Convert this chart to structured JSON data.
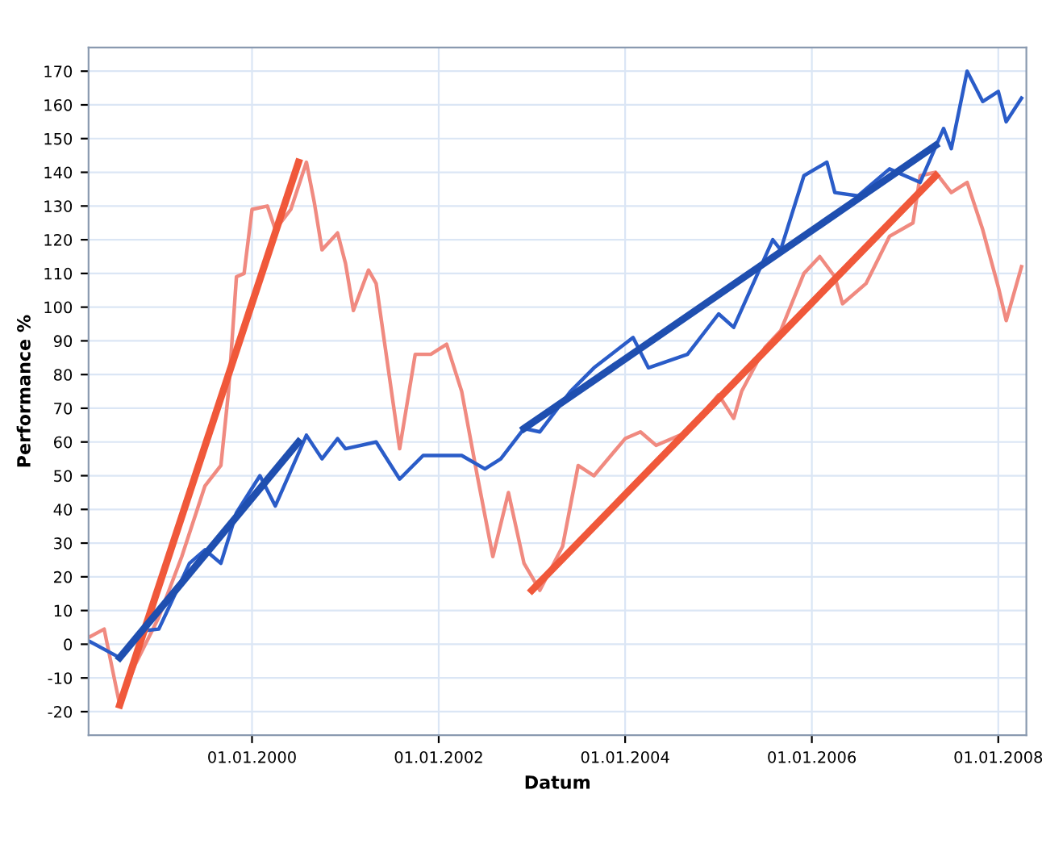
{
  "chart_data": {
    "type": "line",
    "xlabel": "Datum",
    "ylabel": "Performance %",
    "xlim": [
      "1998-04-01",
      "2008-04-20"
    ],
    "ylim": [
      -27,
      177
    ],
    "xticks": [
      {
        "value": "2000-01-01",
        "label": "01.01.2000"
      },
      {
        "value": "2002-01-01",
        "label": "01.01.2002"
      },
      {
        "value": "2004-01-01",
        "label": "01.01.2004"
      },
      {
        "value": "2006-01-01",
        "label": "01.01.2006"
      },
      {
        "value": "2008-01-01",
        "label": "01.01.2008"
      }
    ],
    "yticks": [
      -20,
      -10,
      0,
      10,
      20,
      30,
      40,
      50,
      60,
      70,
      80,
      90,
      100,
      110,
      120,
      130,
      140,
      150,
      160,
      170
    ],
    "grid": true,
    "marker": "none",
    "line_style": "solid",
    "series": [
      {
        "color": "#f08a80",
        "x": [
          "1998-04",
          "1998-06",
          "1998-08",
          "1998-10",
          "1999-01",
          "1999-04",
          "1999-07",
          "1999-09",
          "1999-10",
          "1999-11",
          "1999-12",
          "2000-01",
          "2000-03",
          "2000-04",
          "2000-06",
          "2000-08",
          "2000-09",
          "2000-10",
          "2000-12",
          "2001-01",
          "2001-02",
          "2001-04",
          "2001-05",
          "2001-08",
          "2001-10",
          "2001-12",
          "2002-02",
          "2002-04",
          "2002-06",
          "2002-08",
          "2002-10",
          "2002-12",
          "2003-02",
          "2003-05",
          "2003-07",
          "2003-09",
          "2004-01",
          "2004-03",
          "2004-05",
          "2004-09",
          "2005-01",
          "2005-03",
          "2005-04",
          "2005-07",
          "2005-09",
          "2005-12",
          "2006-02",
          "2006-04",
          "2006-05",
          "2006-08",
          "2006-11",
          "2007-02",
          "2007-03",
          "2007-05",
          "2007-07",
          "2007-09",
          "2007-11",
          "2008-01",
          "2008-02",
          "2008-04"
        ],
        "values": [
          2,
          4.5,
          -18,
          -6,
          8,
          26,
          47,
          53,
          75,
          109,
          110,
          129,
          130,
          123,
          129,
          143,
          131,
          117,
          122,
          113,
          99,
          111,
          107,
          58,
          86,
          86,
          89,
          75,
          50,
          26,
          45,
          24,
          16,
          29,
          53,
          50,
          61,
          63,
          59,
          63,
          74,
          67,
          75,
          88,
          93,
          110,
          115,
          109,
          101,
          107,
          121,
          125,
          139,
          140,
          134,
          137,
          123,
          106,
          96,
          112
        ]
      },
      {
        "color": "#2a5cc8",
        "x": [
          "1998-04",
          "1998-08",
          "1998-11",
          "1999-01",
          "1999-05",
          "1999-07",
          "1999-09",
          "1999-11",
          "2000-02",
          "2000-04",
          "2000-08",
          "2000-10",
          "2000-12",
          "2001-01",
          "2001-05",
          "2001-08",
          "2001-11",
          "2002-04",
          "2002-07",
          "2002-09",
          "2002-12",
          "2003-02",
          "2003-06",
          "2003-09",
          "2004-02",
          "2004-04",
          "2004-09",
          "2005-01",
          "2005-03",
          "2005-08",
          "2005-09",
          "2005-12",
          "2006-03",
          "2006-04",
          "2006-07",
          "2006-11",
          "2007-03",
          "2007-06",
          "2007-07",
          "2007-09",
          "2007-11",
          "2008-01",
          "2008-02",
          "2008-04"
        ],
        "values": [
          1,
          -4,
          4,
          4.5,
          24,
          28,
          24,
          39,
          50,
          41,
          62,
          55,
          61,
          58,
          60,
          49,
          56,
          56,
          52,
          55,
          64,
          63,
          75,
          82,
          91,
          82,
          86,
          98,
          94,
          120,
          117,
          139,
          143,
          134,
          133,
          141,
          137,
          153,
          147,
          170,
          161,
          164,
          155,
          162
        ]
      },
      {
        "color": "#f0583a",
        "x": [
          "1998-08",
          "2000-07"
        ],
        "values": [
          -18,
          143
        ]
      },
      {
        "color": "#1f4fb0",
        "x": [
          "1998-08",
          "2000-07"
        ],
        "values": [
          -4,
          60
        ]
      },
      {
        "color": "#f0583a",
        "x": [
          "2003-01",
          "2007-05"
        ],
        "values": [
          16,
          139
        ]
      },
      {
        "color": "#1f4fb0",
        "x": [
          "2002-12",
          "2007-05"
        ],
        "values": [
          64,
          148
        ]
      }
    ]
  }
}
